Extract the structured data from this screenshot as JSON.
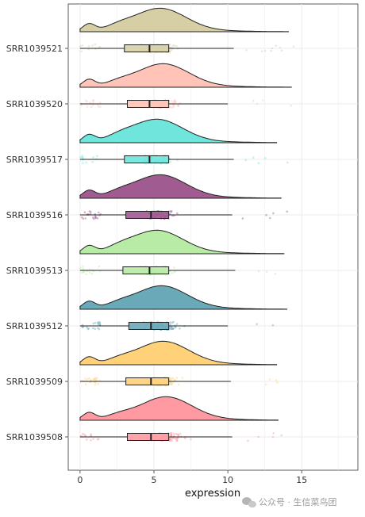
{
  "chart_data": {
    "type": "raincloud",
    "xlabel": "expression",
    "xlim": [
      -0.8,
      18.8
    ],
    "x_ticks": [
      0,
      5,
      10,
      15
    ],
    "grid": true,
    "legend": "none",
    "series": [
      {
        "name": "SRR1039508",
        "color": "#ff9aa2",
        "box": {
          "min": 0,
          "q1": 3.2,
          "median": 4.8,
          "q3": 6.0,
          "max": 10.3
        },
        "density_max_x": 13.4,
        "mode": 5.8
      },
      {
        "name": "SRR1039509",
        "color": "#ffd27a",
        "box": {
          "min": 0,
          "q1": 3.1,
          "median": 4.8,
          "q3": 6.0,
          "max": 10.2
        },
        "density_max_x": 13.3,
        "mode": 5.6
      },
      {
        "name": "SRR1039512",
        "color": "#6aa9b8",
        "box": {
          "min": 0,
          "q1": 3.3,
          "median": 4.8,
          "q3": 6.0,
          "max": 10.0
        },
        "density_max_x": 14.0,
        "mode": 5.5
      },
      {
        "name": "SRR1039513",
        "color": "#b8eba6",
        "box": {
          "min": 0,
          "q1": 2.9,
          "median": 4.7,
          "q3": 6.0,
          "max": 10.5
        },
        "density_max_x": 13.8,
        "mode": 5.2
      },
      {
        "name": "SRR1039516",
        "color": "#a05b91",
        "box": {
          "min": 0,
          "q1": 3.1,
          "median": 4.8,
          "q3": 6.0,
          "max": 10.3
        },
        "density_max_x": 13.6,
        "mode": 5.4
      },
      {
        "name": "SRR1039517",
        "color": "#6fe5dc",
        "box": {
          "min": 0,
          "q1": 3.0,
          "median": 4.7,
          "q3": 6.0,
          "max": 10.4
        },
        "density_max_x": 13.3,
        "mode": 5.2
      },
      {
        "name": "SRR1039520",
        "color": "#ffc3b7",
        "box": {
          "min": 0,
          "q1": 3.2,
          "median": 4.7,
          "q3": 6.0,
          "max": 10.0
        },
        "density_max_x": 14.3,
        "mode": 5.6
      },
      {
        "name": "SRR1039521",
        "color": "#d6cfa6",
        "box": {
          "min": 0,
          "q1": 3.0,
          "median": 4.7,
          "q3": 6.0,
          "max": 10.4
        },
        "density_max_x": 14.1,
        "mode": 5.4
      }
    ]
  },
  "watermark": {
    "icon": "wechat-icon",
    "text": "公众号 · 生信菜鸟团"
  }
}
